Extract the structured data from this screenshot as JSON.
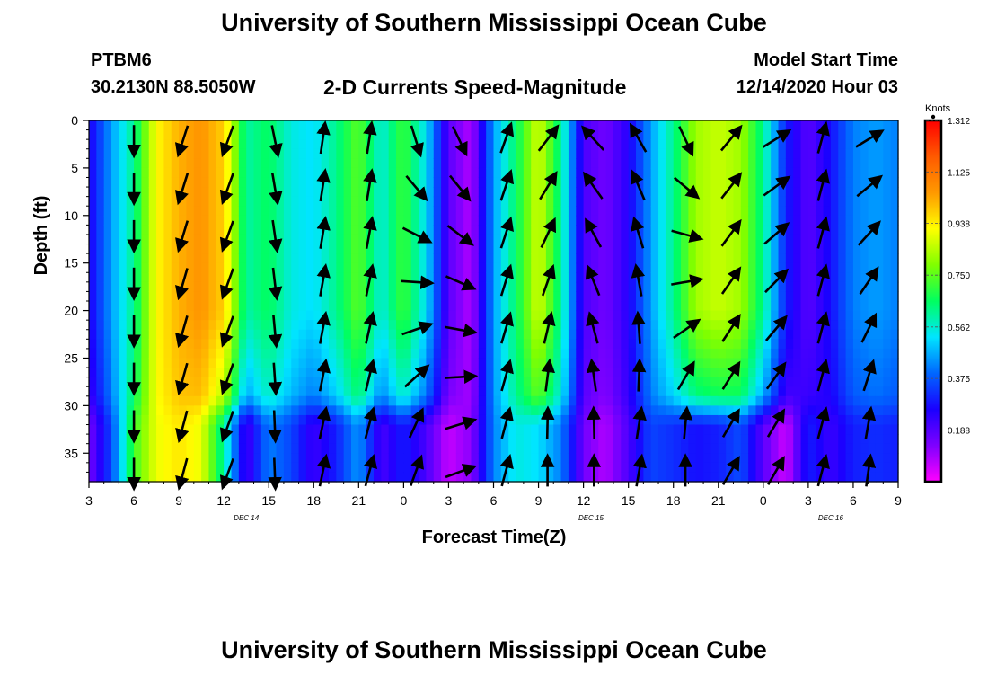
{
  "header": {
    "title": "University of Southern Mississippi Ocean Cube",
    "station": "PTBM6",
    "coordinates": "30.2130N 88.5050W",
    "subtitle": "2-D Currents Speed-Magnitude",
    "start_label": "Model Start Time",
    "start_value": "12/14/2020 Hour 03"
  },
  "footer": {
    "title": "University of Southern Mississippi Ocean Cube"
  },
  "chart_data": {
    "type": "heatmap",
    "title": "2-D Currents Speed-Magnitude",
    "xlabel": "Forecast Time(Z)",
    "ylabel": "Depth (ft)",
    "x_tick_labels": [
      "3",
      "6",
      "9",
      "12",
      "15",
      "18",
      "21",
      "0",
      "3",
      "6",
      "9",
      "12",
      "15",
      "18",
      "21",
      "0",
      "3",
      "6",
      "9"
    ],
    "x_range_hours": [
      0,
      54
    ],
    "date_labels": [
      {
        "text": "DEC 14",
        "hour": 10.5
      },
      {
        "text": "DEC 15",
        "hour": 33.5
      },
      {
        "text": "DEC 16",
        "hour": 49.5
      }
    ],
    "y_ticks": [
      0,
      5,
      10,
      15,
      20,
      25,
      30,
      35
    ],
    "ylim": [
      0,
      38
    ],
    "colorbar": {
      "label": "Knots",
      "range": [
        0,
        1.312
      ],
      "ticks": [
        "1.312",
        "1.125",
        "0.938",
        "0.750",
        "0.562",
        "0.375",
        "0.188"
      ],
      "tick_values": [
        1.312,
        1.125,
        0.938,
        0.75,
        0.562,
        0.375,
        0.188
      ],
      "colors": [
        "#ff00ff",
        "#7f00ff",
        "#1a00ff",
        "#0066ff",
        "#00e5ff",
        "#00ff60",
        "#80ff00",
        "#ffff00",
        "#ff9900",
        "#ff5a00",
        "#ff0000"
      ]
    },
    "speed_profile": {
      "hours": [
        0,
        1.5,
        3,
        4.5,
        6,
        7.5,
        9,
        10.5,
        12,
        13.5,
        15,
        16.5,
        18,
        19.5,
        21,
        22.5,
        24,
        25.5,
        27,
        28.5,
        30,
        31.5,
        33,
        34.5,
        36,
        37.5,
        39,
        40.5,
        42,
        43.5,
        45,
        46.5,
        48,
        49.5,
        51,
        52.5,
        54
      ],
      "surface": [
        0.25,
        0.45,
        0.62,
        0.92,
        1.02,
        1.06,
        0.98,
        0.6,
        0.66,
        0.55,
        0.52,
        0.62,
        0.75,
        0.55,
        0.72,
        0.52,
        0.18,
        0.08,
        0.45,
        0.65,
        0.88,
        0.62,
        0.2,
        0.15,
        0.25,
        0.45,
        0.62,
        0.82,
        0.86,
        0.82,
        0.62,
        0.3,
        0.18,
        0.28,
        0.42,
        0.45,
        0.42
      ],
      "bottom": [
        0.14,
        0.35,
        0.72,
        0.9,
        0.95,
        0.9,
        0.6,
        0.2,
        0.42,
        0.35,
        0.22,
        0.3,
        0.45,
        0.2,
        0.3,
        0.2,
        0.06,
        0.12,
        0.42,
        0.55,
        0.52,
        0.42,
        0.15,
        0.08,
        0.2,
        0.35,
        0.32,
        0.28,
        0.3,
        0.36,
        0.18,
        0.05,
        0.3,
        0.22,
        0.3,
        0.32,
        0.3
      ]
    },
    "vector_columns": [
      {
        "hour": 3,
        "surface_angle": 180,
        "bottom_angle": 180
      },
      {
        "hour": 6.3,
        "surface_angle": 198,
        "bottom_angle": 195
      },
      {
        "hour": 9.3,
        "surface_angle": 200,
        "bottom_angle": 200
      },
      {
        "hour": 12.4,
        "surface_angle": 168,
        "bottom_angle": 178
      },
      {
        "hour": 15.6,
        "surface_angle": 8,
        "bottom_angle": 12
      },
      {
        "hour": 18.7,
        "surface_angle": 8,
        "bottom_angle": 15
      },
      {
        "hour": 21.8,
        "surface_angle": 172,
        "bottom_angle": 20
      },
      {
        "hour": 24.7,
        "surface_angle": 160,
        "bottom_angle": 70
      },
      {
        "hour": 27.8,
        "surface_angle": 20,
        "bottom_angle": 15
      },
      {
        "hour": 30.6,
        "surface_angle": 40,
        "bottom_angle": 0
      },
      {
        "hour": 33.7,
        "surface_angle": 315,
        "bottom_angle": 0
      },
      {
        "hour": 36.7,
        "surface_angle": 328,
        "bottom_angle": 10
      },
      {
        "hour": 39.8,
        "surface_angle": 165,
        "bottom_angle": 0
      },
      {
        "hour": 42.8,
        "surface_angle": 40,
        "bottom_angle": 30
      },
      {
        "hour": 45.8,
        "surface_angle": 60,
        "bottom_angle": 30
      },
      {
        "hour": 48.9,
        "surface_angle": 15,
        "bottom_angle": 15
      },
      {
        "hour": 52,
        "surface_angle": 62,
        "bottom_angle": 8
      }
    ]
  }
}
